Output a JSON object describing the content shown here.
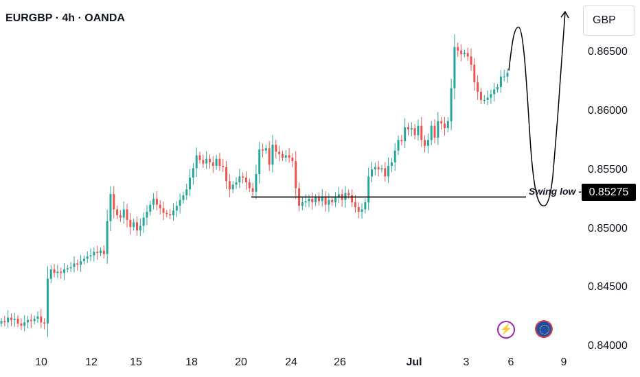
{
  "header": {
    "title": "EURGBP · 4h · OANDA"
  },
  "currency_button": {
    "label": "GBP"
  },
  "swing": {
    "label": "Swing low",
    "price": "0.85275"
  },
  "events": {
    "flash_icon": "lightning-icon",
    "eu_icon": "eu-flag-icon"
  },
  "colors": {
    "up": "#26a69a",
    "down": "#ef5350",
    "text": "#131722"
  },
  "chart_data": {
    "type": "candlestick",
    "title": "EURGBP · 4h · OANDA",
    "ylabel": "GBP",
    "ylim": [
      0.8385,
      0.8695
    ],
    "y_ticks": [
      "0.84000",
      "0.84500",
      "0.85000",
      "0.85500",
      "0.86000",
      "0.86500"
    ],
    "x_ticks": [
      "10",
      "12",
      "15",
      "18",
      "20",
      "24",
      "26",
      "Jul",
      "3",
      "6",
      "9"
    ],
    "horizontal_line": {
      "label": "Swing low",
      "value": 0.85275
    },
    "projection_path_prices": [
      0.8635,
      0.8672,
      0.8555,
      0.852,
      0.8545,
      0.862,
      0.8685
    ],
    "series": [
      {
        "name": "EURGBP",
        "close": [
          0.8422,
          0.8421,
          0.8425,
          0.8423,
          0.8424,
          0.842,
          0.8418,
          0.8421,
          0.8423,
          0.8422,
          0.8424,
          0.8426,
          0.8421,
          0.842,
          0.8458,
          0.8466,
          0.8463,
          0.8464,
          0.8463,
          0.8466,
          0.8467,
          0.8468,
          0.8471,
          0.847,
          0.8473,
          0.8475,
          0.8477,
          0.8478,
          0.8481,
          0.848,
          0.8482,
          0.8479,
          0.8507,
          0.853,
          0.8517,
          0.8512,
          0.851,
          0.8517,
          0.8508,
          0.8502,
          0.8506,
          0.8499,
          0.8503,
          0.851,
          0.8515,
          0.8521,
          0.8526,
          0.8521,
          0.8518,
          0.8514,
          0.8513,
          0.8512,
          0.8516,
          0.852,
          0.8525,
          0.8529,
          0.8534,
          0.8544,
          0.8552,
          0.8563,
          0.8559,
          0.8556,
          0.856,
          0.8557,
          0.8554,
          0.856,
          0.8554,
          0.8553,
          0.8541,
          0.8534,
          0.8538,
          0.854,
          0.8545,
          0.8544,
          0.854,
          0.8535,
          0.8532,
          0.8547,
          0.8568,
          0.8567,
          0.8569,
          0.8555,
          0.8572,
          0.8566,
          0.8564,
          0.8561,
          0.8563,
          0.8561,
          0.8558,
          0.8535,
          0.852,
          0.8523,
          0.8524,
          0.8526,
          0.8523,
          0.8527,
          0.8524,
          0.8528,
          0.8521,
          0.8525,
          0.8523,
          0.8527,
          0.853,
          0.8525,
          0.8531,
          0.8529,
          0.8523,
          0.8519,
          0.8515,
          0.8517,
          0.8523,
          0.8545,
          0.8551,
          0.8553,
          0.8551,
          0.8552,
          0.8545,
          0.8554,
          0.8557,
          0.8567,
          0.8576,
          0.8575,
          0.8587,
          0.8585,
          0.8586,
          0.858,
          0.8588,
          0.8576,
          0.8571,
          0.8576,
          0.8588,
          0.8578,
          0.8592,
          0.859,
          0.8586,
          0.8592,
          0.862,
          0.8655,
          0.8652,
          0.8649,
          0.865,
          0.8647,
          0.864,
          0.8625,
          0.8617,
          0.861,
          0.861,
          0.8612,
          0.8615,
          0.8619,
          0.8621,
          0.863,
          0.863,
          0.8633
        ]
      }
    ]
  }
}
